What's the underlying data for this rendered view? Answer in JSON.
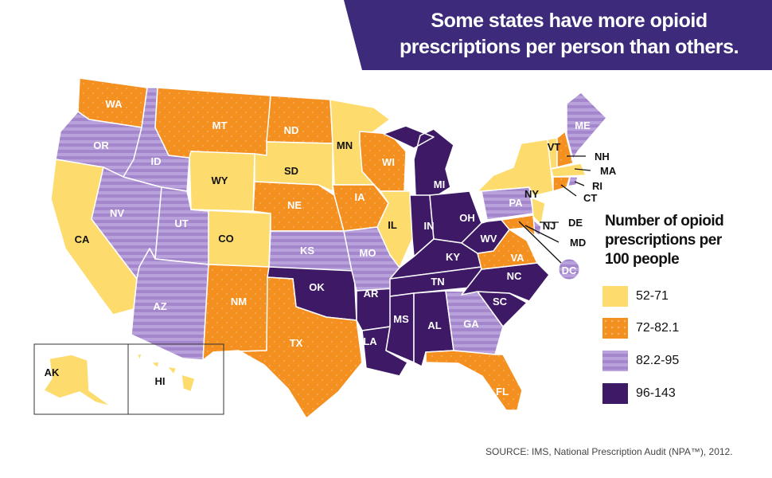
{
  "title": "Some states have more opioid prescriptions per person than others.",
  "legend": {
    "title": "Number of opioid prescriptions per 100 people",
    "items": [
      {
        "label": "52-71",
        "color": "#fddb6d",
        "pattern": "solid"
      },
      {
        "label": "72-82.1",
        "color": "#f39020",
        "pattern": "dots"
      },
      {
        "label": "82.2-95",
        "color": "#a486cc",
        "pattern": "stripes"
      },
      {
        "label": "96-143",
        "color": "#3e1a66",
        "pattern": "solid"
      }
    ]
  },
  "states": [
    {
      "abbr": "WA",
      "category": 1
    },
    {
      "abbr": "OR",
      "category": 2
    },
    {
      "abbr": "CA",
      "category": 0
    },
    {
      "abbr": "NV",
      "category": 2
    },
    {
      "abbr": "ID",
      "category": 2
    },
    {
      "abbr": "UT",
      "category": 2
    },
    {
      "abbr": "AZ",
      "category": 2
    },
    {
      "abbr": "MT",
      "category": 1
    },
    {
      "abbr": "WY",
      "category": 0
    },
    {
      "abbr": "CO",
      "category": 0
    },
    {
      "abbr": "NM",
      "category": 1
    },
    {
      "abbr": "ND",
      "category": 1
    },
    {
      "abbr": "SD",
      "category": 0
    },
    {
      "abbr": "NE",
      "category": 1
    },
    {
      "abbr": "KS",
      "category": 2
    },
    {
      "abbr": "OK",
      "category": 3
    },
    {
      "abbr": "TX",
      "category": 1
    },
    {
      "abbr": "MN",
      "category": 0
    },
    {
      "abbr": "IA",
      "category": 1
    },
    {
      "abbr": "MO",
      "category": 2
    },
    {
      "abbr": "AR",
      "category": 3
    },
    {
      "abbr": "LA",
      "category": 3
    },
    {
      "abbr": "WI",
      "category": 1
    },
    {
      "abbr": "IL",
      "category": 0
    },
    {
      "abbr": "MI",
      "category": 3
    },
    {
      "abbr": "IN",
      "category": 3
    },
    {
      "abbr": "OH",
      "category": 3
    },
    {
      "abbr": "KY",
      "category": 3
    },
    {
      "abbr": "TN",
      "category": 3
    },
    {
      "abbr": "MS",
      "category": 3
    },
    {
      "abbr": "AL",
      "category": 3
    },
    {
      "abbr": "GA",
      "category": 2
    },
    {
      "abbr": "FL",
      "category": 1
    },
    {
      "abbr": "SC",
      "category": 3
    },
    {
      "abbr": "NC",
      "category": 3
    },
    {
      "abbr": "VA",
      "category": 1
    },
    {
      "abbr": "WV",
      "category": 3
    },
    {
      "abbr": "PA",
      "category": 2
    },
    {
      "abbr": "NY",
      "category": 0
    },
    {
      "abbr": "NJ",
      "category": 0
    },
    {
      "abbr": "DE",
      "category": 2
    },
    {
      "abbr": "MD",
      "category": 1
    },
    {
      "abbr": "DC",
      "category": 2
    },
    {
      "abbr": "VT",
      "category": 0
    },
    {
      "abbr": "NH",
      "category": 1
    },
    {
      "abbr": "ME",
      "category": 2
    },
    {
      "abbr": "MA",
      "category": 0
    },
    {
      "abbr": "CT",
      "category": 1
    },
    {
      "abbr": "RI",
      "category": 2
    },
    {
      "abbr": "AK",
      "category": 0
    },
    {
      "abbr": "HI",
      "category": 0
    }
  ],
  "source": "SOURCE: IMS, National Prescription Audit (NPA™), 2012."
}
